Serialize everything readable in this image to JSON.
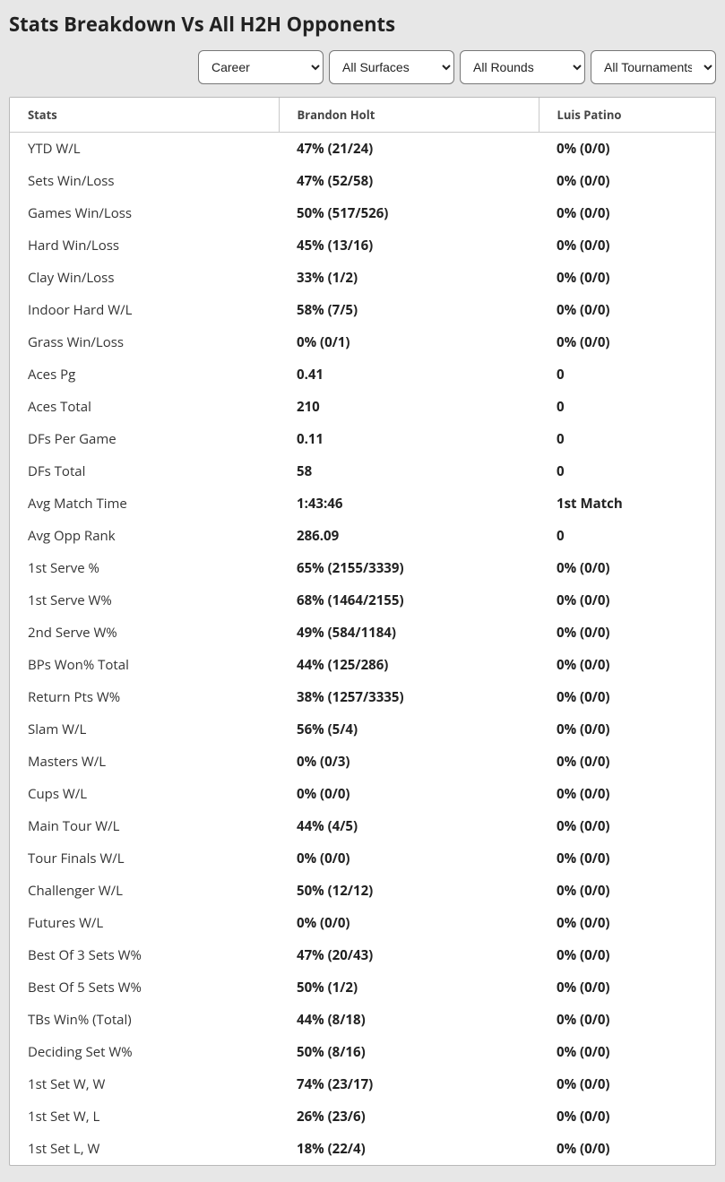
{
  "title": "Stats Breakdown Vs All H2H Opponents",
  "filters": {
    "period": {
      "selected": "Career",
      "options": [
        "Career"
      ]
    },
    "surface": {
      "selected": "All Surfaces",
      "options": [
        "All Surfaces"
      ]
    },
    "round": {
      "selected": "All Rounds",
      "options": [
        "All Rounds"
      ]
    },
    "tourn": {
      "selected": "All Tournaments",
      "options": [
        "All Tournaments"
      ]
    }
  },
  "columns": {
    "stats": "Stats",
    "player1": "Brandon Holt",
    "player2": "Luis Patino"
  },
  "rows": [
    {
      "label": "YTD W/L",
      "p1": "47% (21/24)",
      "p2": "0% (0/0)"
    },
    {
      "label": "Sets Win/Loss",
      "p1": "47% (52/58)",
      "p2": "0% (0/0)"
    },
    {
      "label": "Games Win/Loss",
      "p1": "50% (517/526)",
      "p2": "0% (0/0)"
    },
    {
      "label": "Hard Win/Loss",
      "p1": "45% (13/16)",
      "p2": "0% (0/0)"
    },
    {
      "label": "Clay Win/Loss",
      "p1": "33% (1/2)",
      "p2": "0% (0/0)"
    },
    {
      "label": "Indoor Hard W/L",
      "p1": "58% (7/5)",
      "p2": "0% (0/0)"
    },
    {
      "label": "Grass Win/Loss",
      "p1": "0% (0/1)",
      "p2": "0% (0/0)"
    },
    {
      "label": "Aces Pg",
      "p1": "0.41",
      "p2": "0"
    },
    {
      "label": "Aces Total",
      "p1": "210",
      "p2": "0"
    },
    {
      "label": "DFs Per Game",
      "p1": "0.11",
      "p2": "0"
    },
    {
      "label": "DFs Total",
      "p1": "58",
      "p2": "0"
    },
    {
      "label": "Avg Match Time",
      "p1": "1:43:46",
      "p2": "1st Match"
    },
    {
      "label": "Avg Opp Rank",
      "p1": "286.09",
      "p2": "0"
    },
    {
      "label": "1st Serve %",
      "p1": "65% (2155/3339)",
      "p2": "0% (0/0)"
    },
    {
      "label": "1st Serve W%",
      "p1": "68% (1464/2155)",
      "p2": "0% (0/0)"
    },
    {
      "label": "2nd Serve W%",
      "p1": "49% (584/1184)",
      "p2": "0% (0/0)"
    },
    {
      "label": "BPs Won% Total",
      "p1": "44% (125/286)",
      "p2": "0% (0/0)"
    },
    {
      "label": "Return Pts W%",
      "p1": "38% (1257/3335)",
      "p2": "0% (0/0)"
    },
    {
      "label": "Slam W/L",
      "p1": "56% (5/4)",
      "p2": "0% (0/0)"
    },
    {
      "label": "Masters W/L",
      "p1": "0% (0/3)",
      "p2": "0% (0/0)"
    },
    {
      "label": "Cups W/L",
      "p1": "0% (0/0)",
      "p2": "0% (0/0)"
    },
    {
      "label": "Main Tour W/L",
      "p1": "44% (4/5)",
      "p2": "0% (0/0)"
    },
    {
      "label": "Tour Finals W/L",
      "p1": "0% (0/0)",
      "p2": "0% (0/0)"
    },
    {
      "label": "Challenger W/L",
      "p1": "50% (12/12)",
      "p2": "0% (0/0)"
    },
    {
      "label": "Futures W/L",
      "p1": "0% (0/0)",
      "p2": "0% (0/0)"
    },
    {
      "label": "Best Of 3 Sets W%",
      "p1": "47% (20/43)",
      "p2": "0% (0/0)"
    },
    {
      "label": "Best Of 5 Sets W%",
      "p1": "50% (1/2)",
      "p2": "0% (0/0)"
    },
    {
      "label": "TBs Win% (Total)",
      "p1": "44% (8/18)",
      "p2": "0% (0/0)"
    },
    {
      "label": "Deciding Set W%",
      "p1": "50% (8/16)",
      "p2": "0% (0/0)"
    },
    {
      "label": "1st Set W, W",
      "p1": "74% (23/17)",
      "p2": "0% (0/0)"
    },
    {
      "label": "1st Set W, L",
      "p1": "26% (23/6)",
      "p2": "0% (0/0)"
    },
    {
      "label": "1st Set L, W",
      "p1": "18% (22/4)",
      "p2": "0% (0/0)"
    }
  ]
}
